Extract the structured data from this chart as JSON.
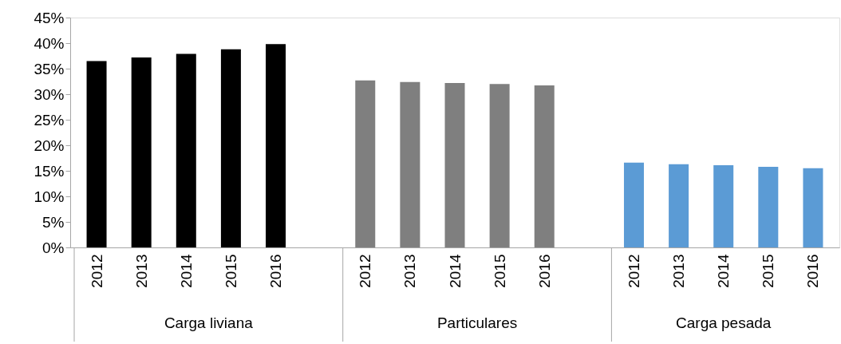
{
  "chart_data": {
    "type": "bar",
    "categories": [
      "2012",
      "2013",
      "2014",
      "2015",
      "2016",
      "2012",
      "2013",
      "2014",
      "2015",
      "2016",
      "2012",
      "2013",
      "2014",
      "2015",
      "2016"
    ],
    "values": [
      36.5,
      37.2,
      37.9,
      38.8,
      39.8,
      32.7,
      32.4,
      32.2,
      32.0,
      31.7,
      16.6,
      16.3,
      16.1,
      15.8,
      15.5
    ],
    "colors": [
      "#000000",
      "#000000",
      "#000000",
      "#000000",
      "#000000",
      "#7f7f7f",
      "#7f7f7f",
      "#7f7f7f",
      "#7f7f7f",
      "#7f7f7f",
      "#5b9bd5",
      "#5b9bd5",
      "#5b9bd5",
      "#5b9bd5",
      "#5b9bd5"
    ],
    "annotations": [
      "Carga liviana",
      "Particulares",
      "Carga pesada"
    ],
    "ylim": [
      0,
      45
    ],
    "yticks": [
      {
        "value": 0,
        "label": "0%"
      },
      {
        "value": 5,
        "label": "5%"
      },
      {
        "value": 10,
        "label": "10%"
      },
      {
        "value": 15,
        "label": "15%"
      },
      {
        "value": 20,
        "label": "20%"
      },
      {
        "value": 25,
        "label": "25%"
      },
      {
        "value": 30,
        "label": "30%"
      },
      {
        "value": 35,
        "label": "35%"
      },
      {
        "value": 40,
        "label": "40%"
      },
      {
        "value": 45,
        "label": "45%"
      }
    ],
    "grid": false
  }
}
